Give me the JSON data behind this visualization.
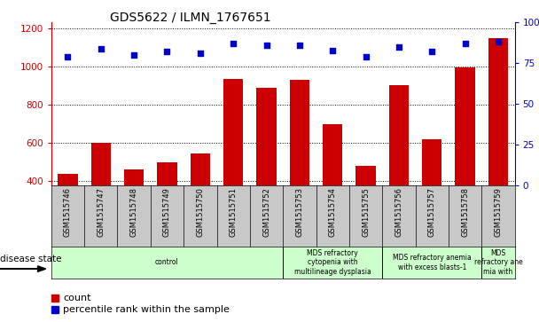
{
  "title": "GDS5622 / ILMN_1767651",
  "samples": [
    "GSM1515746",
    "GSM1515747",
    "GSM1515748",
    "GSM1515749",
    "GSM1515750",
    "GSM1515751",
    "GSM1515752",
    "GSM1515753",
    "GSM1515754",
    "GSM1515755",
    "GSM1515756",
    "GSM1515757",
    "GSM1515758",
    "GSM1515759"
  ],
  "counts": [
    440,
    600,
    460,
    500,
    545,
    935,
    890,
    930,
    700,
    480,
    905,
    620,
    995,
    1150
  ],
  "percentile_ranks": [
    79,
    84,
    80,
    82,
    81,
    87,
    86,
    86,
    83,
    79,
    85,
    82,
    87,
    88
  ],
  "ylim_left": [
    380,
    1230
  ],
  "ylim_right": [
    0,
    100
  ],
  "yticks_left": [
    400,
    600,
    800,
    1000,
    1200
  ],
  "yticks_right": [
    0,
    25,
    50,
    75,
    100
  ],
  "bar_color": "#cc0000",
  "dot_color": "#0000cc",
  "label_bg_color": "#c8c8c8",
  "disease_bg_color": "#ccffcc",
  "disease_states": [
    {
      "label": "control",
      "start": 0,
      "end": 7
    },
    {
      "label": "MDS refractory\ncytopenia with\nmultilineage dysplasia",
      "start": 7,
      "end": 10
    },
    {
      "label": "MDS refractory anemia\nwith excess blasts-1",
      "start": 10,
      "end": 13
    },
    {
      "label": "MDS\nrefractory ane\nmia with",
      "start": 13,
      "end": 14
    }
  ],
  "legend_count_label": "count",
  "legend_pct_label": "percentile rank within the sample",
  "fig_width": 6.08,
  "fig_height": 3.63,
  "dpi": 100
}
